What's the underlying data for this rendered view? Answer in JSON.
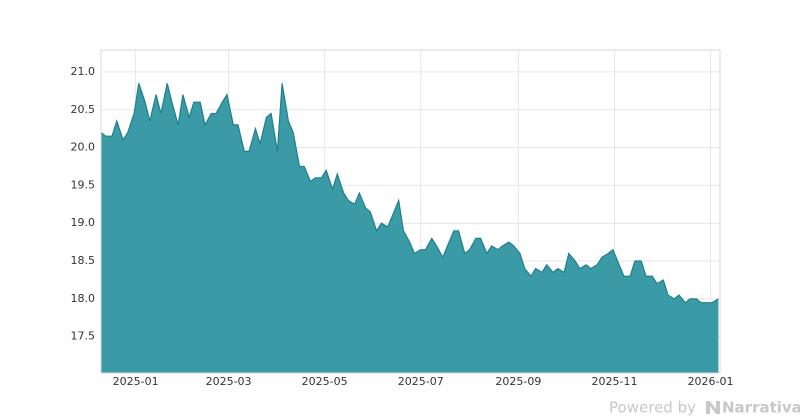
{
  "chart_data": {
    "type": "area",
    "x": [
      "2024-12-10",
      "2024-12-13",
      "2024-12-17",
      "2024-12-20",
      "2024-12-24",
      "2024-12-27",
      "2024-12-31",
      "2025-01-03",
      "2025-01-07",
      "2025-01-10",
      "2025-01-14",
      "2025-01-17",
      "2025-01-21",
      "2025-01-24",
      "2025-01-28",
      "2025-01-31",
      "2025-02-04",
      "2025-02-07",
      "2025-02-11",
      "2025-02-14",
      "2025-02-18",
      "2025-02-21",
      "2025-02-25",
      "2025-02-28",
      "2025-03-04",
      "2025-03-07",
      "2025-03-11",
      "2025-03-14",
      "2025-03-18",
      "2025-03-21",
      "2025-03-25",
      "2025-03-28",
      "2025-04-01",
      "2025-04-04",
      "2025-04-08",
      "2025-04-11",
      "2025-04-15",
      "2025-04-18",
      "2025-04-22",
      "2025-04-25",
      "2025-04-29",
      "2025-05-02",
      "2025-05-06",
      "2025-05-09",
      "2025-05-13",
      "2025-05-16",
      "2025-05-20",
      "2025-05-23",
      "2025-05-27",
      "2025-05-30",
      "2025-06-03",
      "2025-06-06",
      "2025-06-10",
      "2025-06-13",
      "2025-06-17",
      "2025-06-20",
      "2025-06-24",
      "2025-06-27",
      "2025-07-01",
      "2025-07-04",
      "2025-07-08",
      "2025-07-11",
      "2025-07-15",
      "2025-07-18",
      "2025-07-22",
      "2025-07-25",
      "2025-07-29",
      "2025-08-01",
      "2025-08-05",
      "2025-08-08",
      "2025-08-12",
      "2025-08-15",
      "2025-08-19",
      "2025-08-22",
      "2025-08-26",
      "2025-08-29",
      "2025-09-02",
      "2025-09-05",
      "2025-09-09",
      "2025-09-12",
      "2025-09-16",
      "2025-09-19",
      "2025-09-23",
      "2025-09-26",
      "2025-09-30",
      "2025-10-03",
      "2025-10-07",
      "2025-10-10",
      "2025-10-14",
      "2025-10-17",
      "2025-10-21",
      "2025-10-24",
      "2025-10-28",
      "2025-10-31",
      "2025-11-04",
      "2025-11-07",
      "2025-11-11",
      "2025-11-14",
      "2025-11-18",
      "2025-11-21",
      "2025-11-25",
      "2025-11-28",
      "2025-12-02",
      "2025-12-05",
      "2025-12-09",
      "2025-12-12",
      "2025-12-16",
      "2025-12-19",
      "2025-12-23",
      "2025-12-26",
      "2025-12-30",
      "2026-01-02",
      "2026-01-06"
    ],
    "values": [
      20.2,
      20.15,
      20.15,
      20.35,
      20.1,
      20.2,
      20.45,
      20.85,
      20.6,
      20.35,
      20.7,
      20.45,
      20.85,
      20.6,
      20.3,
      20.7,
      20.4,
      20.6,
      20.6,
      20.3,
      20.45,
      20.45,
      20.6,
      20.7,
      20.3,
      20.3,
      19.95,
      19.95,
      20.25,
      20.05,
      20.4,
      20.45,
      19.95,
      20.85,
      20.35,
      20.2,
      19.75,
      19.75,
      19.55,
      19.6,
      19.6,
      19.7,
      19.45,
      19.65,
      19.4,
      19.3,
      19.25,
      19.4,
      19.2,
      19.15,
      18.9,
      19.0,
      18.95,
      19.1,
      19.3,
      18.9,
      18.75,
      18.6,
      18.65,
      18.65,
      18.8,
      18.7,
      18.55,
      18.7,
      18.9,
      18.9,
      18.6,
      18.65,
      18.8,
      18.8,
      18.6,
      18.7,
      18.65,
      18.7,
      18.75,
      18.7,
      18.6,
      18.4,
      18.3,
      18.4,
      18.35,
      18.45,
      18.35,
      18.4,
      18.35,
      18.6,
      18.5,
      18.4,
      18.45,
      18.4,
      18.45,
      18.55,
      18.6,
      18.65,
      18.45,
      18.3,
      18.3,
      18.5,
      18.5,
      18.3,
      18.3,
      18.2,
      18.25,
      18.05,
      18.0,
      18.05,
      17.95,
      18.0,
      18.0,
      17.95,
      17.95,
      17.95,
      18.0
    ],
    "color": "#3a9ba6",
    "line_color": "#1f7f8a",
    "xlim": [
      "2024-12-10",
      "2026-01-07"
    ],
    "xticks": [
      "2025-01",
      "2025-03",
      "2025-05",
      "2025-07",
      "2025-09",
      "2025-11",
      "2026-01"
    ],
    "ylim": [
      17.02,
      21.29
    ],
    "yticks": [
      17.5,
      {
        "value": 18,
        "label": "18.0"
      },
      18.5,
      {
        "value": 19,
        "label": "19.0"
      },
      19.5,
      {
        "value": 20,
        "label": "20.0"
      },
      20.5,
      {
        "value": 21,
        "label": "21.0"
      }
    ],
    "grid": true
  },
  "footer": {
    "powered_by": "Powered by",
    "brand": "Narrativa"
  }
}
